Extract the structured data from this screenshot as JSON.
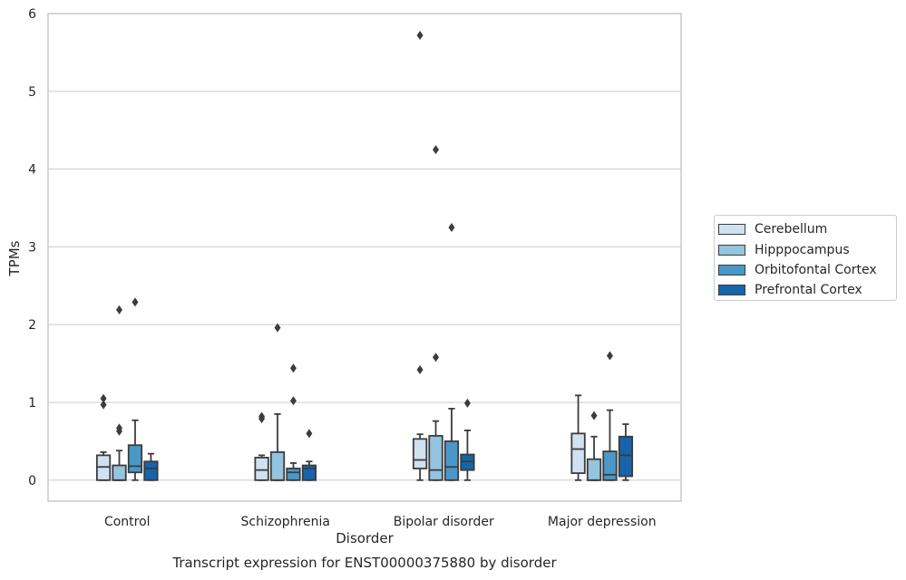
{
  "chart_data": {
    "type": "box",
    "title": "Transcript expression for ENST00000375880 by disorder",
    "xlabel": "Disorder",
    "ylabel": "TPMs",
    "ylim": [
      -0.27,
      6.0
    ],
    "yticks": [
      0,
      1,
      2,
      3,
      4,
      5,
      6
    ],
    "grid": true,
    "legend_position": "right",
    "categories": [
      "Control",
      "Schizophrenia",
      "Bipolar disorder",
      "Major depression"
    ],
    "series": [
      {
        "name": "Cerebellum",
        "color": "#d0e1f2",
        "boxes": [
          {
            "whislo": 0.0,
            "q1": 0.0,
            "med": 0.17,
            "q3": 0.32,
            "whishi": 0.36,
            "fliers": [
              0.97,
              1.05
            ]
          },
          {
            "whislo": 0.0,
            "q1": 0.0,
            "med": 0.13,
            "q3": 0.29,
            "whishi": 0.32,
            "fliers": [
              0.79,
              0.82
            ]
          },
          {
            "whislo": 0.0,
            "q1": 0.15,
            "med": 0.26,
            "q3": 0.53,
            "whishi": 0.59,
            "fliers": [
              5.72,
              1.42
            ]
          },
          {
            "whislo": 0.0,
            "q1": 0.09,
            "med": 0.4,
            "q3": 0.6,
            "whishi": 1.09,
            "fliers": []
          }
        ]
      },
      {
        "name": "Hipppocampus",
        "color": "#94c4df",
        "boxes": [
          {
            "whislo": 0.0,
            "q1": 0.0,
            "med": 0.0,
            "q3": 0.19,
            "whishi": 0.38,
            "fliers": [
              0.63,
              0.67,
              2.19
            ]
          },
          {
            "whislo": 0.0,
            "q1": 0.0,
            "med": 0.0,
            "q3": 0.36,
            "whishi": 0.85,
            "fliers": [
              1.96
            ]
          },
          {
            "whislo": 0.0,
            "q1": 0.0,
            "med": 0.13,
            "q3": 0.57,
            "whishi": 0.76,
            "fliers": [
              4.25,
              1.58
            ]
          },
          {
            "whislo": 0.0,
            "q1": 0.0,
            "med": 0.0,
            "q3": 0.27,
            "whishi": 0.56,
            "fliers": [
              0.83
            ]
          }
        ]
      },
      {
        "name": "Orbitofontal Cortex",
        "color": "#4a98c9",
        "boxes": [
          {
            "whislo": 0.0,
            "q1": 0.1,
            "med": 0.18,
            "q3": 0.45,
            "whishi": 0.77,
            "fliers": [
              2.29
            ]
          },
          {
            "whislo": 0.0,
            "q1": 0.0,
            "med": 0.1,
            "q3": 0.15,
            "whishi": 0.22,
            "fliers": [
              1.44,
              1.02
            ]
          },
          {
            "whislo": 0.0,
            "q1": 0.0,
            "med": 0.17,
            "q3": 0.5,
            "whishi": 0.92,
            "fliers": [
              3.25
            ]
          },
          {
            "whislo": 0.0,
            "q1": 0.0,
            "med": 0.07,
            "q3": 0.37,
            "whishi": 0.9,
            "fliers": [
              1.6
            ]
          }
        ]
      },
      {
        "name": "Prefrontal Cortex",
        "color": "#1764ab",
        "boxes": [
          {
            "whislo": 0.0,
            "q1": 0.0,
            "med": 0.15,
            "q3": 0.24,
            "whishi": 0.34,
            "fliers": []
          },
          {
            "whislo": 0.0,
            "q1": 0.0,
            "med": 0.15,
            "q3": 0.19,
            "whishi": 0.24,
            "fliers": [
              0.6
            ]
          },
          {
            "whislo": 0.0,
            "q1": 0.13,
            "med": 0.24,
            "q3": 0.33,
            "whishi": 0.64,
            "fliers": [
              0.99
            ]
          },
          {
            "whislo": 0.0,
            "q1": 0.05,
            "med": 0.32,
            "q3": 0.56,
            "whishi": 0.72,
            "fliers": []
          }
        ]
      }
    ]
  }
}
